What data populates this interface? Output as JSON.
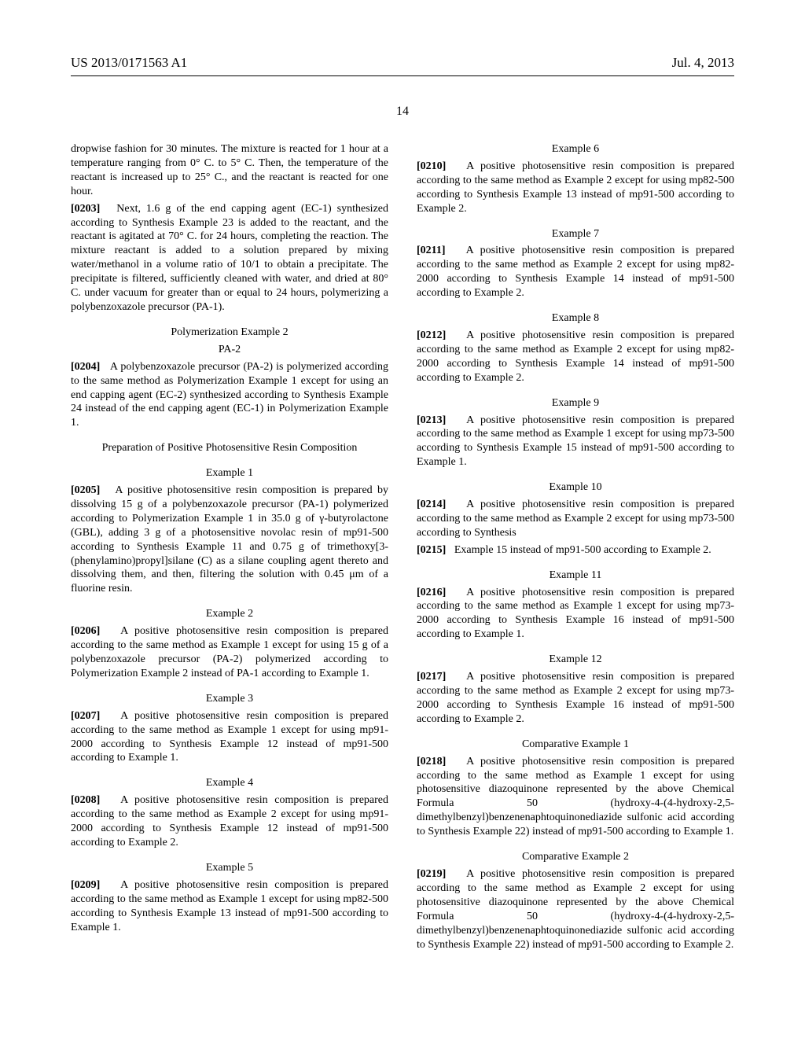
{
  "header": {
    "pubno": "US 2013/0171563 A1",
    "date": "Jul. 4, 2013"
  },
  "pagenum": "14",
  "p0": "dropwise fashion for 30 minutes. The mixture is reacted for 1 hour at a temperature ranging from 0° C. to 5° C. Then, the temperature of the reactant is increased up to 25° C., and the reactant is reacted for one hour.",
  "p1_num": "[0203]",
  "p1": "Next, 1.6 g of the end capping agent (EC-1) synthesized according to Synthesis Example 23 is added to the reactant, and the reactant is agitated at 70° C. for 24 hours, completing the reaction. The mixture reactant is added to a solution prepared by mixing water/methanol in a volume ratio of 10/1 to obtain a precipitate. The precipitate is filtered, sufficiently cleaned with water, and dried at 80° C. under vacuum for greater than or equal to 24 hours, polymerizing a polybenzoxazole precursor (PA-1).",
  "h1": "Polymerization Example 2",
  "h2": "PA-2",
  "p2_num": "[0204]",
  "p2": "A polybenzoxazole precursor (PA-2) is polymerized according to the same method as Polymerization Example 1 except for using an end capping agent (EC-2) synthesized according to Synthesis Example 24 instead of the end capping agent (EC-1) in Polymerization Example 1.",
  "h3": "Preparation of Positive Photosensitive Resin Composition",
  "h4": "Example 1",
  "p3_num": "[0205]",
  "p3": "A positive photosensitive resin composition is prepared by dissolving 15 g of a polybenzoxazole precursor (PA-1) polymerized according to Polymerization Example 1 in 35.0 g of γ-butyrolactone (GBL), adding 3 g of a photosensitive novolac resin of mp91-500 according to Synthesis Example 11 and 0.75 g of trimethoxy[3-(phenylamino)propyl]silane (C) as a silane coupling agent thereto and dissolving them, and then, filtering the solution with 0.45 μm of a fluorine resin.",
  "h5": "Example 2",
  "p4_num": "[0206]",
  "p4": "A positive photosensitive resin composition is prepared according to the same method as Example 1 except for using 15 g of a polybenzoxazole precursor (PA-2) polymerized according to Polymerization Example 2 instead of PA-1 according to Example 1.",
  "h6": "Example 3",
  "p5_num": "[0207]",
  "p5": "A positive photosensitive resin composition is prepared according to the same method as Example 1 except for using mp91-2000 according to Synthesis Example 12 instead of mp91-500 according to Example 1.",
  "h7": "Example 4",
  "p6_num": "[0208]",
  "p6": "A positive photosensitive resin composition is prepared according to the same method as Example 2 except for using mp91-2000 according to Synthesis Example 12 instead of mp91-500 according to Example 2.",
  "h8": "Example 5",
  "p7_num": "[0209]",
  "p7": "A positive photosensitive resin composition is prepared according to the same method as Example 1 except for using mp82-500 according to Synthesis Example 13 instead of mp91-500 according to Example 1.",
  "h9": "Example 6",
  "p8_num": "[0210]",
  "p8": "A positive photosensitive resin composition is prepared according to the same method as Example 2 except for using mp82-500 according to Synthesis Example 13 instead of mp91-500 according to Example 2.",
  "h10": "Example 7",
  "p9_num": "[0211]",
  "p9": "A positive photosensitive resin composition is prepared according to the same method as Example 2 except for using mp82-2000 according to Synthesis Example 14 instead of mp91-500 according to Example 2.",
  "h11": "Example 8",
  "p10_num": "[0212]",
  "p10": "A positive photosensitive resin composition is prepared according to the same method as Example 2 except for using mp82-2000 according to Synthesis Example 14 instead of mp91-500 according to Example 2.",
  "h12": "Example 9",
  "p11_num": "[0213]",
  "p11": "A positive photosensitive resin composition is prepared according to the same method as Example 1 except for using mp73-500 according to Synthesis Example 15 instead of mp91-500 according to Example 1.",
  "h13": "Example 10",
  "p12_num": "[0214]",
  "p12": "A positive photosensitive resin composition is prepared according to the same method as Example 2 except for using mp73-500 according to Synthesis",
  "p12b_num": "[0215]",
  "p12b": "Example 15 instead of mp91-500 according to Example 2.",
  "h14": "Example 11",
  "p13_num": "[0216]",
  "p13": "A positive photosensitive resin composition is prepared according to the same method as Example 1 except for using mp73-2000 according to Synthesis Example 16 instead of mp91-500 according to Example 1.",
  "h15": "Example 12",
  "p14_num": "[0217]",
  "p14": "A positive photosensitive resin composition is prepared according to the same method as Example 2 except for using mp73-2000 according to Synthesis Example 16 instead of mp91-500 according to Example 2.",
  "h16": "Comparative Example 1",
  "p15_num": "[0218]",
  "p15": "A positive photosensitive resin composition is prepared according to the same method as Example 1 except for using photosensitive diazoquinone represented by the above Chemical Formula 50 (hydroxy-4-(4-hydroxy-2,5-dimethylbenzyl)benzenenaphtoquinonediazide sulfonic acid according to Synthesis Example 22) instead of mp91-500 according to Example 1.",
  "h17": "Comparative Example 2",
  "p16_num": "[0219]",
  "p16": "A positive photosensitive resin composition is prepared according to the same method as Example 2 except for using photosensitive diazoquinone represented by the above Chemical Formula 50 (hydroxy-4-(4-hydroxy-2,5-dimethylbenzyl)benzenenaphtoquinonediazide sulfonic acid according to Synthesis Example 22) instead of mp91-500 according to Example 2."
}
